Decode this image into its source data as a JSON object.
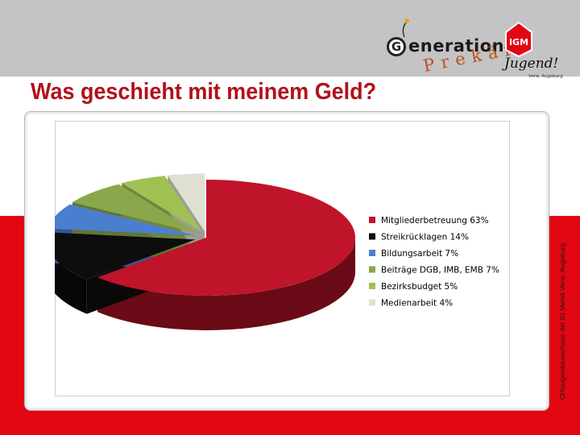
{
  "header": {
    "logo_generation_word": "eneration",
    "logo_generation_g": "G",
    "logo_generation_sub": "Prekär",
    "logo_jugend_text": "Jugend!",
    "logo_jugend_sub": "Verw. Augsburg",
    "logo_igm_text": "IGM"
  },
  "title": "Was geschieht mit meinem Geld?",
  "side_text": "Ortsjugendausschuss der IG Metall Verw. Augsburg",
  "colors": {
    "brand_red": "#e30613",
    "title_red": "#b0121c",
    "background_grey": "#c4c4c4"
  },
  "chart_data": {
    "type": "pie",
    "style": "3d-exploded",
    "categories": [
      "Mitgliederbetreuung 63%",
      "Streikrücklagen 14%",
      "Bildungsarbeit 7%",
      "Beiträge DGB, IMB, EMB 7%",
      "Bezirksbudget 5%",
      "Medienarbeit 4%"
    ],
    "values": [
      63,
      14,
      7,
      7,
      5,
      4
    ],
    "colors": [
      "#c0142a",
      "#0d0d0d",
      "#4a7fd0",
      "#8aa84b",
      "#9fc154",
      "#e0e0d2"
    ],
    "legend_position": "right"
  }
}
